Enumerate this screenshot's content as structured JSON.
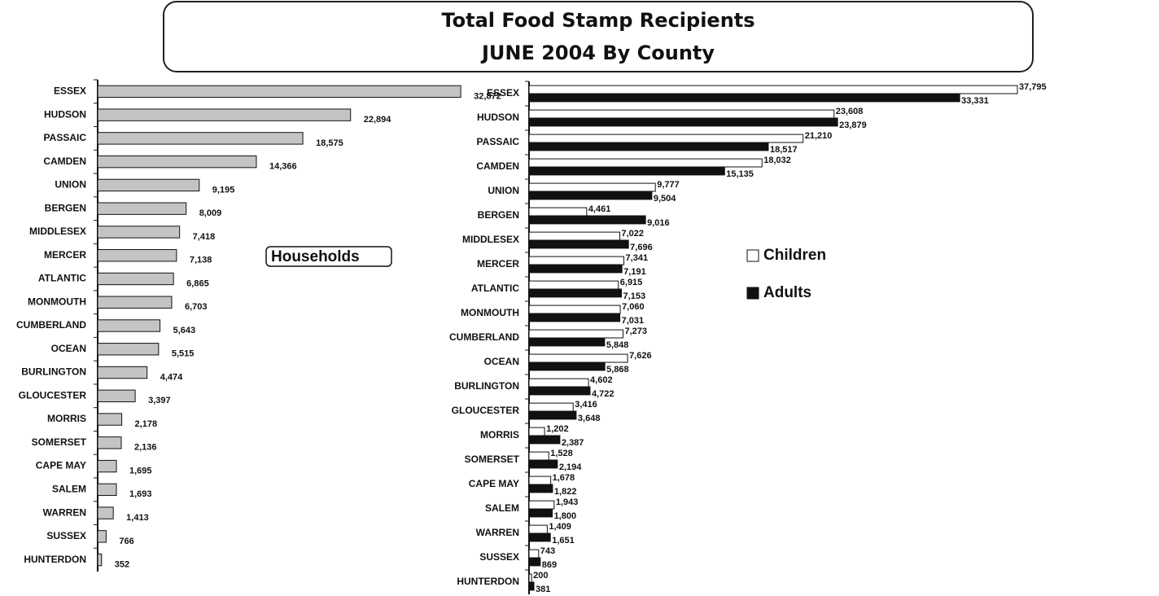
{
  "chart_data": [
    {
      "type": "bar",
      "orientation": "horizontal",
      "title": "Total Food Stamp Recipients",
      "subtitle": "JUNE 2004 By County",
      "categories": [
        "ESSEX",
        "HUDSON",
        "PASSAIC",
        "CAMDEN",
        "UNION",
        "BERGEN",
        "MIDDLESEX",
        "MERCER",
        "ATLANTIC",
        "MONMOUTH",
        "CUMBERLAND",
        "OCEAN",
        "BURLINGTON",
        "GLOUCESTER",
        "MORRIS",
        "SOMERSET",
        "CAPE MAY",
        "SALEM",
        "WARREN",
        "SUSSEX",
        "HUNTERDON"
      ],
      "xlim": [
        0,
        35000
      ],
      "series": [
        {
          "name": "Households",
          "color": "#c4c4c4",
          "values": [
            32872,
            22894,
            18575,
            14366,
            9195,
            8009,
            7418,
            7138,
            6865,
            6703,
            5643,
            5515,
            4474,
            3397,
            2178,
            2136,
            1695,
            1693,
            1413,
            766,
            352
          ],
          "value_labels": [
            "32,872",
            "22,894",
            "18,575",
            "14,366",
            "9,195",
            "8,009",
            "7,418",
            "7,138",
            "6,865",
            "6,703",
            "5,643",
            "5,515",
            "4,474",
            "3,397",
            "2,178",
            "2,136",
            "1,695",
            "1,693",
            "1,413",
            "766",
            "352"
          ]
        }
      ]
    },
    {
      "type": "bar",
      "orientation": "horizontal",
      "legend": "right",
      "categories": [
        "ESSEX",
        "HUDSON",
        "PASSAIC",
        "CAMDEN",
        "UNION",
        "BERGEN",
        "MIDDLESEX",
        "MERCER",
        "ATLANTIC",
        "MONMOUTH",
        "CUMBERLAND",
        "OCEAN",
        "BURLINGTON",
        "GLOUCESTER",
        "MORRIS",
        "SOMERSET",
        "CAPE MAY",
        "SALEM",
        "WARREN",
        "SUSSEX",
        "HUNTERDON"
      ],
      "xlim": [
        0,
        40000
      ],
      "series": [
        {
          "name": "Children",
          "color": "#ffffff",
          "values": [
            37795,
            23608,
            21210,
            18032,
            9777,
            4461,
            7022,
            7341,
            6915,
            7060,
            7273,
            7626,
            4602,
            3416,
            1202,
            1528,
            1678,
            1943,
            1409,
            743,
            200
          ],
          "value_labels": [
            "37,795",
            "23,608",
            "21,210",
            "18,032",
            "9,777",
            "4,461",
            "7,022",
            "7,341",
            "6,915",
            "7,060",
            "7,273",
            "7,626",
            "4,602",
            "3,416",
            "1,202",
            "1,528",
            "1,678",
            "1,943",
            "1,409",
            "743",
            "200"
          ]
        },
        {
          "name": "Adults",
          "color": "#111111",
          "values": [
            33331,
            23879,
            18517,
            15135,
            9504,
            9016,
            7696,
            7191,
            7153,
            7031,
            5848,
            5868,
            4722,
            3648,
            2387,
            2194,
            1822,
            1800,
            1651,
            869,
            381
          ],
          "value_labels": [
            "33,331",
            "23,879",
            "18,517",
            "15,135",
            "9,504",
            "9,016",
            "7,696",
            "7,191",
            "7,153",
            "7,031",
            "5,848",
            "5,868",
            "4,722",
            "3,648",
            "2,387",
            "2,194",
            "1,822",
            "1,800",
            "1,651",
            "869",
            "381"
          ]
        }
      ]
    }
  ]
}
